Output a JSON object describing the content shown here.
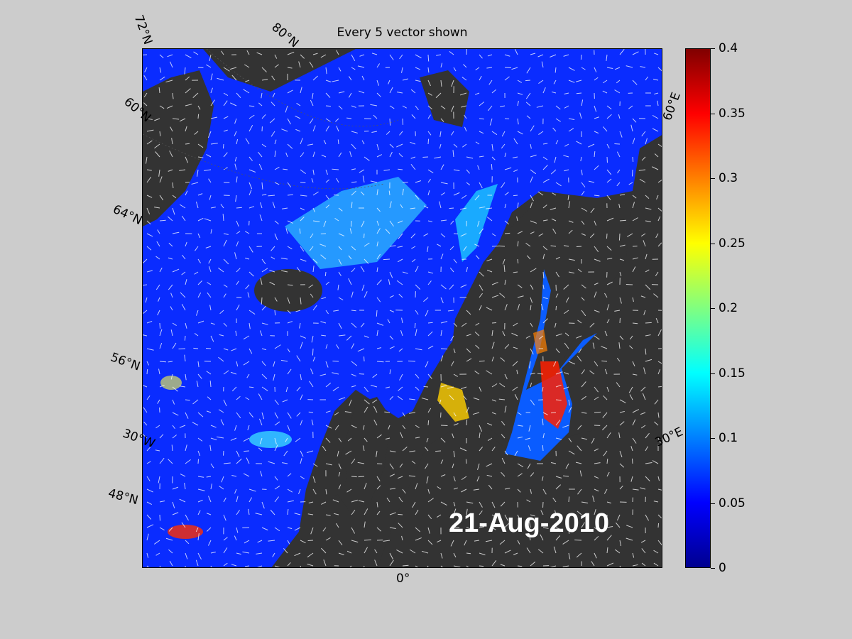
{
  "title": "Every 5 vector shown",
  "date": "21-Aug-2010",
  "grid_labels": {
    "lat_72": "72°N",
    "lat_80": "80°N",
    "lat_60_top": "60°N",
    "lat_64": "64°N",
    "lat_56": "56°N",
    "lat_48": "48°N",
    "lon_30W": "30°W",
    "lon_0": "0°",
    "lon_60E": "60°E",
    "lon_30E": "30°E"
  },
  "colorbar": {
    "min": 0,
    "max": 0.4,
    "ticks": [
      "0",
      "0.05",
      "0.1",
      "0.15",
      "0.2",
      "0.25",
      "0.3",
      "0.35",
      "0.4"
    ]
  },
  "colors": {
    "background": "#cccccc",
    "land": "#333333",
    "ocean_low": "#0010ff",
    "ocean_high": "#ff0000",
    "vectors": "#ffffff"
  }
}
